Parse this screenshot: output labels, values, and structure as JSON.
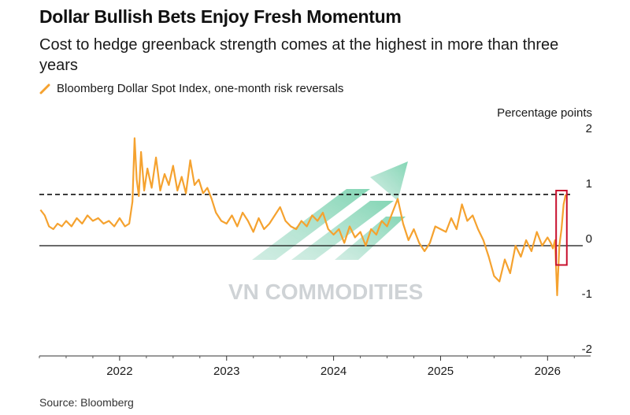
{
  "chart_data": {
    "type": "line",
    "title": "Dollar Bullish Bets Enjoy Fresh Momentum",
    "subtitle": "Cost to hedge greenback strength comes at the highest in more than three years",
    "legend": "Bloomberg Dollar Spot Index, one-month risk reversals",
    "unit_label": "Percentage points",
    "source": "Source: Bloomberg",
    "watermark": "VN COMMODITIES",
    "ylim": [
      -2,
      2
    ],
    "y_ticks": [
      2,
      1,
      0,
      -1,
      -2
    ],
    "y_tick_labels": [
      "2",
      "1",
      "0",
      "-1",
      "-2"
    ],
    "x_range": [
      2021.25,
      2026.27
    ],
    "x_ticks": [
      2022,
      2023,
      2024,
      2025,
      2026
    ],
    "x_tick_labels": [
      "2022",
      "2023",
      "2024",
      "2025",
      "2026"
    ],
    "reference_line": {
      "value": 0.93,
      "style": "dashed"
    },
    "zero_line": {
      "value": 0,
      "style": "solid"
    },
    "highlight": {
      "x_start": 2026.08,
      "x_end": 2026.18,
      "y_low": -0.35,
      "y_high": 1.0
    },
    "series": [
      {
        "name": "Bloomberg Dollar Spot Index, one-month risk reversals",
        "color": "#f5a22f",
        "x": [
          2021.26,
          2021.3,
          2021.34,
          2021.38,
          2021.42,
          2021.46,
          2021.5,
          2021.55,
          2021.6,
          2021.65,
          2021.7,
          2021.75,
          2021.8,
          2021.85,
          2021.9,
          2021.95,
          2022.0,
          2022.05,
          2022.09,
          2022.12,
          2022.14,
          2022.16,
          2022.18,
          2022.2,
          2022.23,
          2022.26,
          2022.3,
          2022.34,
          2022.38,
          2022.42,
          2022.46,
          2022.5,
          2022.54,
          2022.58,
          2022.62,
          2022.66,
          2022.7,
          2022.74,
          2022.78,
          2022.82,
          2022.86,
          2022.9,
          2022.95,
          2023.0,
          2023.05,
          2023.1,
          2023.15,
          2023.2,
          2023.25,
          2023.3,
          2023.35,
          2023.4,
          2023.45,
          2023.5,
          2023.55,
          2023.6,
          2023.65,
          2023.7,
          2023.75,
          2023.8,
          2023.85,
          2023.9,
          2023.95,
          2024.0,
          2024.05,
          2024.1,
          2024.15,
          2024.2,
          2024.25,
          2024.3,
          2024.35,
          2024.4,
          2024.45,
          2024.5,
          2024.55,
          2024.6,
          2024.65,
          2024.7,
          2024.75,
          2024.8,
          2024.85,
          2024.9,
          2024.95,
          2025.0,
          2025.05,
          2025.1,
          2025.15,
          2025.2,
          2025.25,
          2025.3,
          2025.35,
          2025.4,
          2025.45,
          2025.5,
          2025.55,
          2025.6,
          2025.65,
          2025.7,
          2025.75,
          2025.8,
          2025.85,
          2025.9,
          2025.95,
          2026.0,
          2026.03,
          2026.05,
          2026.07,
          2026.09,
          2026.11,
          2026.13,
          2026.15,
          2026.17
        ],
        "y": [
          0.65,
          0.55,
          0.35,
          0.3,
          0.4,
          0.35,
          0.45,
          0.35,
          0.5,
          0.4,
          0.55,
          0.45,
          0.5,
          0.4,
          0.45,
          0.35,
          0.5,
          0.35,
          0.4,
          0.8,
          1.95,
          1.2,
          0.9,
          1.7,
          1.0,
          1.4,
          1.05,
          1.6,
          1.0,
          1.3,
          1.1,
          1.45,
          1.0,
          1.25,
          0.95,
          1.55,
          1.1,
          1.2,
          0.95,
          1.05,
          0.85,
          0.6,
          0.45,
          0.4,
          0.55,
          0.35,
          0.6,
          0.45,
          0.25,
          0.5,
          0.3,
          0.4,
          0.55,
          0.7,
          0.45,
          0.35,
          0.3,
          0.45,
          0.35,
          0.55,
          0.45,
          0.6,
          0.3,
          0.2,
          0.3,
          0.05,
          0.35,
          0.15,
          0.25,
          0.0,
          0.3,
          0.2,
          0.45,
          0.35,
          0.6,
          0.85,
          0.4,
          0.1,
          0.3,
          0.05,
          -0.1,
          0.05,
          0.35,
          0.3,
          0.25,
          0.5,
          0.3,
          0.75,
          0.45,
          0.55,
          0.3,
          0.1,
          -0.2,
          -0.55,
          -0.65,
          -0.25,
          -0.5,
          0.0,
          -0.2,
          0.1,
          -0.1,
          0.25,
          0.0,
          0.15,
          0.05,
          -0.05,
          0.1,
          -0.9,
          0.0,
          0.3,
          0.75,
          0.93
        ]
      }
    ]
  }
}
